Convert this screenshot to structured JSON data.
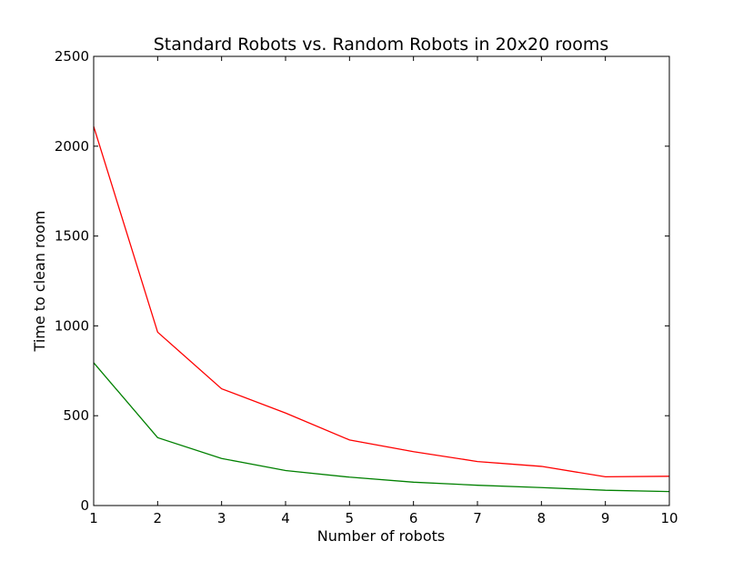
{
  "chart_data": {
    "type": "line",
    "title": "Standard Robots vs. Random Robots in 20x20 rooms",
    "xlabel": "Number of robots",
    "ylabel": "Time to clean room",
    "x": [
      1,
      2,
      3,
      4,
      5,
      6,
      7,
      8,
      9,
      10
    ],
    "xlim": [
      1,
      10
    ],
    "ylim": [
      0,
      2500
    ],
    "xticks": [
      "1",
      "2",
      "3",
      "4",
      "5",
      "6",
      "7",
      "8",
      "9",
      "10"
    ],
    "yticks": [
      "0",
      "500",
      "1000",
      "1500",
      "2000",
      "2500"
    ],
    "grid": false,
    "series": [
      {
        "color": "#ff0000",
        "values": [
          2110,
          965,
          650,
          515,
          365,
          300,
          245,
          218,
          160,
          163
        ]
      },
      {
        "color": "#008000",
        "values": [
          795,
          378,
          262,
          195,
          158,
          130,
          113,
          100,
          85,
          78
        ]
      }
    ]
  }
}
